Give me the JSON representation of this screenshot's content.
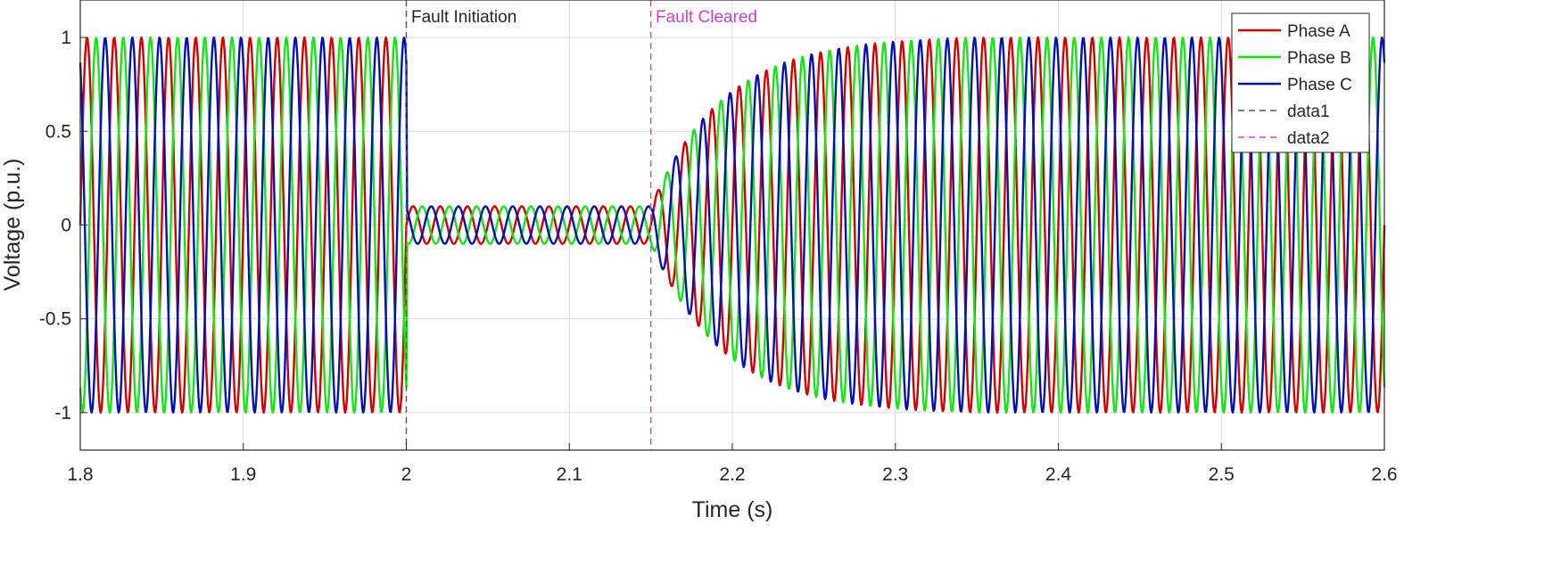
{
  "chart_data": {
    "type": "line",
    "title": "",
    "xlabel": "Time (s)",
    "ylabel": "Voltage (p.u.)",
    "xlim": [
      1.8,
      2.6
    ],
    "ylim": [
      -1.2,
      1.2
    ],
    "xticks": [
      1.8,
      1.9,
      2.0,
      2.1,
      2.2,
      2.3,
      2.4,
      2.5,
      2.6
    ],
    "xtick_labels": [
      "1.8",
      "1.9",
      "2",
      "2.1",
      "2.2",
      "2.3",
      "2.4",
      "2.5",
      "2.6"
    ],
    "yticks": [
      1,
      0.5,
      0,
      -0.5,
      -1
    ],
    "ytick_labels": [
      "1",
      "0.5",
      "0",
      "-0.5",
      "-1"
    ],
    "grid": true,
    "legend_position": "top-right",
    "frequency_hz": 60,
    "sample_step_s": 0.0005,
    "amplitude_profile": {
      "pre_fault_amplitude": 1.0,
      "fault_amplitude": 0.1,
      "fault_start_s": 2.0,
      "fault_clear_s": 2.15,
      "recovery_end_s": 2.35,
      "recovered_amplitude": 1.0
    },
    "series": [
      {
        "name": "Phase A",
        "color": "#d40000",
        "phase_deg": 0
      },
      {
        "name": "Phase B",
        "color": "#14e614",
        "phase_deg": -120
      },
      {
        "name": "Phase C",
        "color": "#0010b4",
        "phase_deg": 120
      }
    ],
    "vlines": [
      {
        "name": "data1",
        "x": 2.0,
        "color": "#555555",
        "label": "Fault Initiation"
      },
      {
        "name": "data2",
        "x": 2.15,
        "color": "#d040d0",
        "label": "Fault Cleared"
      }
    ],
    "legend": {
      "entries": [
        "Phase A",
        "Phase B",
        "Phase C",
        "data1",
        "data2"
      ]
    }
  }
}
